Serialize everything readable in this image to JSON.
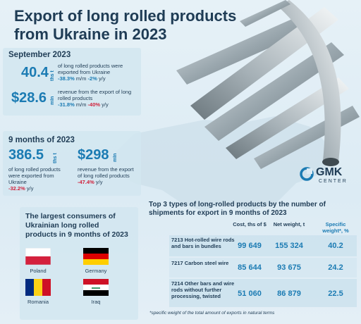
{
  "title": "Export of long rolled products from Ukraine in 2023",
  "september": {
    "heading": "September 2023",
    "volume_value": "40.4",
    "volume_unit": "ths t",
    "volume_text": "of long rolled products were exported from Ukraine",
    "volume_change_mm": "-38.3%",
    "volume_change_mm_suffix": "m/m",
    "volume_change_yy": "-2%",
    "volume_change_yy_suffix": "y/y",
    "revenue_value": "$28.6",
    "revenue_unit": "mln",
    "revenue_text": "revenue from the export of long rolled products",
    "revenue_change_mm": "-31.8%",
    "revenue_change_mm_suffix": "m/m",
    "revenue_change_yy": "-40%",
    "revenue_change_yy_suffix": "y/y"
  },
  "nine_months": {
    "heading": "9 months of 2023",
    "volume_value": "386.5",
    "volume_unit": "ths t",
    "volume_text": "of long rolled products were exported from Ukraine",
    "volume_change": "-32.2%",
    "volume_change_suffix": "y/y",
    "revenue_value": "$298",
    "revenue_unit": "mln",
    "revenue_text": "revenue from the export of long rolled products",
    "revenue_change": "-47.4%",
    "revenue_change_suffix": "y/y"
  },
  "consumers": {
    "title": "The largest consumers of Ukrainian long rolled products in 9 months of 2023",
    "countries": [
      {
        "name": "Poland",
        "colors": [
          "#ffffff",
          "#d4213d"
        ]
      },
      {
        "name": "Germany",
        "colors": [
          "#000000",
          "#dd0000",
          "#ffce00"
        ]
      },
      {
        "name": "Romania",
        "colors": [
          "#002b7f",
          "#fcd116",
          "#ce1126"
        ]
      },
      {
        "name": "Iraq",
        "colors": [
          "#ce1126",
          "#ffffff",
          "#000000"
        ]
      }
    ]
  },
  "table": {
    "title": "Top 3 types of long-rolled products by the number of shipments for export in 9 months of 2023",
    "headers": {
      "cost": "Cost, ths of $",
      "net": "Net weight, t",
      "share": "Specific weight*, %"
    },
    "rows": [
      {
        "label": "7213 Hot-rolled wire rods and bars in bundles",
        "cost": "99 649",
        "net": "155 324",
        "share": "40.2"
      },
      {
        "label": "7217 Carbon steel wire",
        "cost": "85 644",
        "net": "93 675",
        "share": "24.2"
      },
      {
        "label": "7214 Other bars and wire rods without further processing, twisted",
        "cost": "51 060",
        "net": "86 879",
        "share": "22.5"
      }
    ],
    "footnote": "*specific weight of the total amount of exports in natural terms"
  },
  "logo": {
    "name": "GMK",
    "sub": "CENTER"
  },
  "colors": {
    "accent": "#1b7bb3",
    "negative": "#d0213b",
    "text": "#1f3c55"
  }
}
